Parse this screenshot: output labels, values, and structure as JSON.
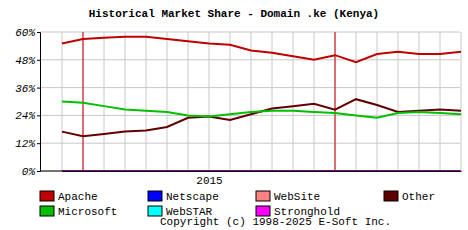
{
  "chart_data": {
    "type": "line",
    "title": "Historical Market Share - Domain .ke (Kenya)",
    "categories": [
      null,
      null,
      null,
      null,
      null,
      null,
      null,
      "2015",
      null,
      null,
      null,
      null,
      null,
      null,
      null,
      null,
      null,
      null,
      null,
      null
    ],
    "series": [
      {
        "name": "Apache",
        "color": "#c00000",
        "values": [
          55,
          57,
          57.5,
          58,
          58,
          57,
          56,
          55,
          54.5,
          52,
          51,
          49.5,
          48,
          50,
          47,
          50.5,
          51.5,
          50.5,
          50.5,
          51.5
        ]
      },
      {
        "name": "Netscape",
        "color": "#0000ff",
        "values": [
          0,
          0,
          0,
          0,
          0,
          0,
          0,
          0,
          0,
          0,
          0,
          0,
          0,
          0,
          0,
          0,
          0,
          0,
          0,
          0
        ]
      },
      {
        "name": "WebSite",
        "color": "#ff8080",
        "values": [
          0,
          0,
          0,
          0,
          0,
          0,
          0,
          0,
          0,
          0,
          0,
          0,
          0,
          0,
          0,
          0,
          0,
          0,
          0,
          0
        ]
      },
      {
        "name": "Other",
        "color": "#600000",
        "values": [
          17,
          15,
          16,
          17,
          17.5,
          19,
          23,
          23.5,
          22,
          24.5,
          27,
          28,
          29,
          26.5,
          31,
          28.5,
          25.5,
          26,
          26.5,
          26
        ]
      },
      {
        "name": "Microsoft",
        "color": "#00c000",
        "values": [
          30,
          29.5,
          28,
          26.5,
          26,
          25.5,
          24,
          23.5,
          24.5,
          25.5,
          26,
          26,
          25.5,
          25,
          24,
          23,
          25,
          25.5,
          25,
          24.5
        ]
      },
      {
        "name": "WebSTAR",
        "color": "#00ffff",
        "values": [
          0,
          0,
          0,
          0,
          0,
          0,
          0,
          0,
          0,
          0,
          0,
          0,
          0,
          0,
          0,
          0,
          0,
          0,
          0,
          0
        ]
      },
      {
        "name": "Stronghold",
        "color": "#ff00ff",
        "values": [
          0,
          0,
          0,
          0,
          0,
          0,
          0,
          0,
          0,
          0,
          0,
          0,
          0,
          0,
          0,
          0,
          0,
          0,
          0,
          0
        ]
      }
    ],
    "ylim": [
      0,
      60
    ],
    "yticks": [
      {
        "value": 0,
        "label": "0%"
      },
      {
        "value": 12,
        "label": "12%"
      },
      {
        "value": 24,
        "label": "24%"
      },
      {
        "value": 36,
        "label": "36%"
      },
      {
        "value": 48,
        "label": "48%"
      },
      {
        "value": 60,
        "label": "60%"
      }
    ],
    "grid": true,
    "legend": "bottom",
    "annotations": [
      "Copyright (c) 1998-2025 E-Soft Inc."
    ]
  }
}
